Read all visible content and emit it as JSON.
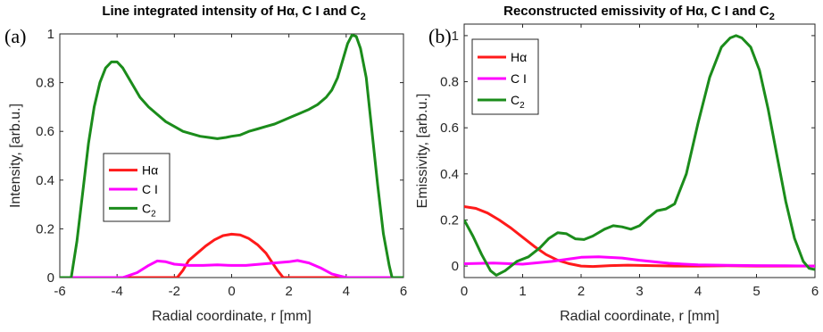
{
  "figure": {
    "background": "#ffffff"
  },
  "chart_data": [
    {
      "type": "line",
      "panel_label": "(a)",
      "title": "Line integrated intensity of Hα, C I and C",
      "title_sub": "2",
      "xlabel": "Radial coordinate, r [mm]",
      "ylabel": "Intensity, [arb.u.]",
      "xlim": [
        -6,
        6
      ],
      "ylim": [
        0,
        1
      ],
      "xticks": [
        -6,
        -4,
        -2,
        0,
        2,
        4,
        6
      ],
      "yticks": [
        0,
        0.2,
        0.4,
        0.6,
        0.8,
        1
      ],
      "ytick_labels": [
        "0",
        "0.2",
        "0.4",
        "0.6",
        "0.8",
        "1"
      ],
      "grid": false,
      "legend": {
        "placement": "center-left"
      },
      "series": [
        {
          "name": "Hα",
          "color": "#ff1a1a",
          "x": [
            -6,
            -1.9,
            -1.7,
            -1.5,
            -1.2,
            -0.9,
            -0.6,
            -0.3,
            0,
            0.3,
            0.6,
            0.9,
            1.2,
            1.4,
            1.6,
            1.8,
            6
          ],
          "y": [
            0,
            0,
            0.03,
            0.07,
            0.1,
            0.13,
            0.155,
            0.172,
            0.178,
            0.175,
            0.16,
            0.135,
            0.1,
            0.065,
            0.03,
            0,
            0
          ]
        },
        {
          "name": "C I",
          "color": "#ff00ff",
          "x": [
            -6,
            -3.8,
            -3.3,
            -2.9,
            -2.6,
            -2.3,
            -2.0,
            -1.5,
            -1.0,
            -0.5,
            0,
            0.5,
            1.0,
            1.5,
            2.0,
            2.3,
            2.7,
            3.1,
            3.5,
            4.0,
            6
          ],
          "y": [
            0,
            0,
            0.02,
            0.05,
            0.068,
            0.065,
            0.055,
            0.05,
            0.05,
            0.052,
            0.05,
            0.05,
            0.055,
            0.06,
            0.065,
            0.07,
            0.06,
            0.04,
            0.015,
            0,
            0
          ]
        },
        {
          "name": "C2",
          "label_main": "C",
          "label_sub": "2",
          "color": "#1b8c1b",
          "x": [
            -6,
            -5.6,
            -5.4,
            -5.2,
            -5.0,
            -4.8,
            -4.6,
            -4.4,
            -4.2,
            -4.0,
            -3.8,
            -3.5,
            -3.2,
            -2.9,
            -2.6,
            -2.3,
            -2.0,
            -1.7,
            -1.4,
            -1.1,
            -0.8,
            -0.5,
            -0.2,
            0,
            0.3,
            0.6,
            0.9,
            1.2,
            1.5,
            1.8,
            2.1,
            2.4,
            2.7,
            3.0,
            3.3,
            3.5,
            3.7,
            3.9,
            4.05,
            4.2,
            4.35,
            4.5,
            4.7,
            4.9,
            5.1,
            5.3,
            5.5,
            5.6,
            6
          ],
          "y": [
            0,
            0,
            0.15,
            0.35,
            0.55,
            0.7,
            0.8,
            0.86,
            0.885,
            0.885,
            0.86,
            0.8,
            0.74,
            0.7,
            0.67,
            0.64,
            0.62,
            0.6,
            0.59,
            0.58,
            0.575,
            0.57,
            0.575,
            0.58,
            0.585,
            0.6,
            0.61,
            0.62,
            0.63,
            0.645,
            0.66,
            0.675,
            0.69,
            0.71,
            0.74,
            0.77,
            0.82,
            0.9,
            0.96,
            0.995,
            0.99,
            0.94,
            0.82,
            0.6,
            0.38,
            0.18,
            0.05,
            0,
            0
          ]
        }
      ]
    },
    {
      "type": "line",
      "panel_label": "(b)",
      "title": "Reconstructed emissivity of Hα, C I and C",
      "title_sub": "2",
      "xlabel": "Radial coordinate, r [mm]",
      "ylabel": "Emissivity, [arb.u.]",
      "xlim": [
        0,
        6
      ],
      "ylim": [
        -0.05,
        1.05
      ],
      "xticks": [
        0,
        1,
        2,
        3,
        4,
        5,
        6
      ],
      "yticks": [
        0,
        0.2,
        0.4,
        0.6,
        0.8,
        1
      ],
      "ytick_labels": [
        "0",
        "0.2",
        "0.4",
        "0.6",
        "0.8",
        "1"
      ],
      "grid": false,
      "legend": {
        "placement": "top-left"
      },
      "series": [
        {
          "name": "Hα",
          "color": "#ff1a1a",
          "x": [
            0,
            0.2,
            0.4,
            0.6,
            0.8,
            1.0,
            1.2,
            1.4,
            1.6,
            1.8,
            2.0,
            2.2,
            2.5,
            2.8,
            3.2,
            3.6,
            4.0,
            4.5,
            5.0,
            5.5,
            6.0
          ],
          "y": [
            0.258,
            0.25,
            0.23,
            0.2,
            0.165,
            0.125,
            0.085,
            0.05,
            0.025,
            0.01,
            0.0,
            -0.002,
            0.002,
            0.004,
            0.002,
            0.0,
            0.0,
            0.001,
            0.0,
            0.0,
            0.0
          ]
        },
        {
          "name": "C I",
          "color": "#ff00ff",
          "x": [
            0,
            0.5,
            1.0,
            1.5,
            2.0,
            2.3,
            2.7,
            3.0,
            3.5,
            4.0,
            4.5,
            5.0,
            5.5,
            6.0
          ],
          "y": [
            0.01,
            0.013,
            0.008,
            0.02,
            0.038,
            0.04,
            0.035,
            0.025,
            0.012,
            0.005,
            0.003,
            0.002,
            0.001,
            0.0
          ],
          "dash": "5,1"
        },
        {
          "name": "C2",
          "label_main": "C",
          "label_sub": "2",
          "color": "#1b8c1b",
          "x": [
            0,
            0.15,
            0.3,
            0.45,
            0.55,
            0.7,
            0.9,
            1.1,
            1.3,
            1.45,
            1.6,
            1.75,
            1.9,
            2.05,
            2.2,
            2.4,
            2.55,
            2.7,
            2.85,
            3.0,
            3.15,
            3.3,
            3.45,
            3.6,
            3.8,
            4.0,
            4.2,
            4.4,
            4.55,
            4.65,
            4.75,
            4.9,
            5.05,
            5.2,
            5.35,
            5.5,
            5.65,
            5.8,
            5.9,
            6.0
          ],
          "y": [
            0.2,
            0.13,
            0.05,
            -0.02,
            -0.04,
            -0.02,
            0.02,
            0.04,
            0.08,
            0.12,
            0.145,
            0.14,
            0.118,
            0.115,
            0.13,
            0.16,
            0.175,
            0.17,
            0.16,
            0.175,
            0.21,
            0.24,
            0.248,
            0.27,
            0.4,
            0.62,
            0.82,
            0.95,
            0.99,
            1.0,
            0.99,
            0.95,
            0.85,
            0.68,
            0.48,
            0.28,
            0.12,
            0.02,
            -0.01,
            -0.015
          ]
        }
      ]
    }
  ]
}
